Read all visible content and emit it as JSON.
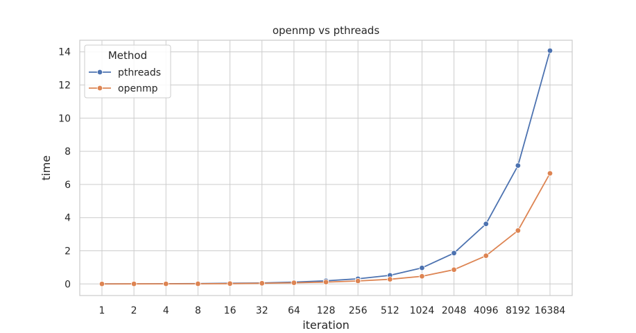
{
  "chart_data": {
    "type": "line",
    "title": "openmp vs pthreads",
    "xlabel": "iteration",
    "ylabel": "time",
    "categories": [
      "1",
      "2",
      "4",
      "8",
      "16",
      "32",
      "64",
      "128",
      "256",
      "512",
      "1024",
      "2048",
      "4096",
      "8192",
      "16384"
    ],
    "ylim": [
      -0.7,
      14.7
    ],
    "yticks": [
      "0",
      "2",
      "4",
      "6",
      "8",
      "10",
      "12",
      "14"
    ],
    "grid": true,
    "legend": {
      "title": "Method",
      "placement": "top-left"
    },
    "series": [
      {
        "name": "pthreads",
        "color": "#4c72b0",
        "values": [
          0.003,
          0.006,
          0.01,
          0.02,
          0.04,
          0.06,
          0.11,
          0.19,
          0.31,
          0.52,
          0.97,
          1.86,
          3.62,
          7.14,
          14.07
        ]
      },
      {
        "name": "openmp",
        "color": "#dd8452",
        "values": [
          0.002,
          0.004,
          0.006,
          0.01,
          0.02,
          0.04,
          0.07,
          0.11,
          0.18,
          0.28,
          0.46,
          0.86,
          1.7,
          3.22,
          6.67
        ]
      }
    ]
  }
}
